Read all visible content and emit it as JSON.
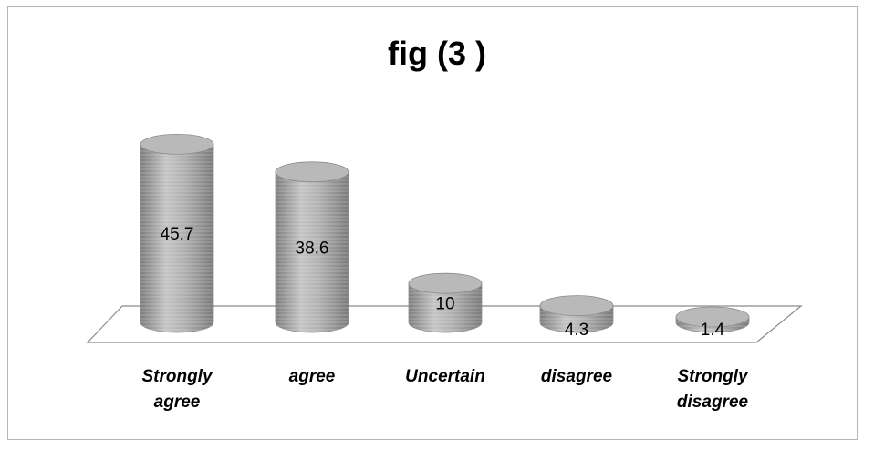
{
  "chart_data": {
    "type": "bar",
    "title": "fig (3 )",
    "categories": [
      "Strongly\nagree",
      "agree",
      "Uncertain",
      "disagree",
      "Strongly\ndisagree"
    ],
    "values": [
      45.7,
      38.6,
      10,
      4.3,
      1.4
    ],
    "value_labels": [
      "45.7",
      "38.6",
      "10",
      "4.3",
      "1.4"
    ],
    "xlabel": "",
    "ylabel": "",
    "ylim": [
      0,
      50
    ],
    "grid": false,
    "legend": "none",
    "style": "3d-cylinder",
    "colors": {
      "bar": "#a8a8a8",
      "bar_dark": "#7d7d7d",
      "bar_light": "#cfcfcf",
      "floor_edge": "#8a8a8a"
    }
  }
}
